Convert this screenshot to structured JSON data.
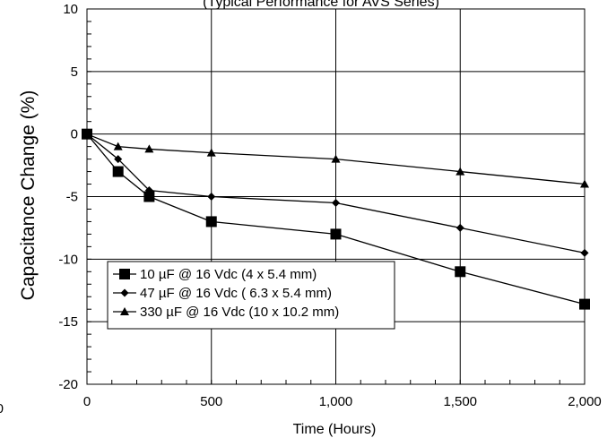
{
  "chart_data": {
    "type": "line",
    "title": "(Typical Performance for AVS Series)",
    "xlabel": "Time (Hours)",
    "ylabel": "Capacitance Change (%)",
    "xlim": [
      0,
      2000
    ],
    "ylim": [
      -20,
      10
    ],
    "x_ticks": [
      0,
      500,
      1000,
      1500,
      2000
    ],
    "x_tick_labels": [
      "0",
      "500",
      "1,000",
      "1,500",
      "2,000"
    ],
    "y_ticks": [
      -20,
      -15,
      -10,
      -5,
      0,
      5,
      10
    ],
    "y_tick_labels": [
      "-20",
      "-15",
      "-10",
      "-5",
      "0",
      "5",
      "10"
    ],
    "stray_left_label": "0",
    "grid": true,
    "legend_position": "lower-left",
    "series": [
      {
        "name": "10 µF @ 16 Vdc (4 x 5.4 mm)",
        "marker": "square",
        "x": [
          0,
          125,
          250,
          500,
          1000,
          1500,
          2000
        ],
        "y": [
          0,
          -3,
          -5,
          -7,
          -8,
          -11,
          -13.6
        ]
      },
      {
        "name": "47 µF @ 16 Vdc ( 6.3 x 5.4 mm)",
        "marker": "diamond",
        "x": [
          0,
          125,
          250,
          500,
          1000,
          1500,
          2000
        ],
        "y": [
          0,
          -2,
          -4.5,
          -5,
          -5.5,
          -7.5,
          -9.5
        ]
      },
      {
        "name": "330 µF @ 16 Vdc (10 x 10.2 mm)",
        "marker": "triangle",
        "x": [
          0,
          125,
          250,
          500,
          1000,
          1500,
          2000
        ],
        "y": [
          0,
          -1,
          -1.2,
          -1.5,
          -2,
          -3,
          -4
        ]
      }
    ]
  }
}
